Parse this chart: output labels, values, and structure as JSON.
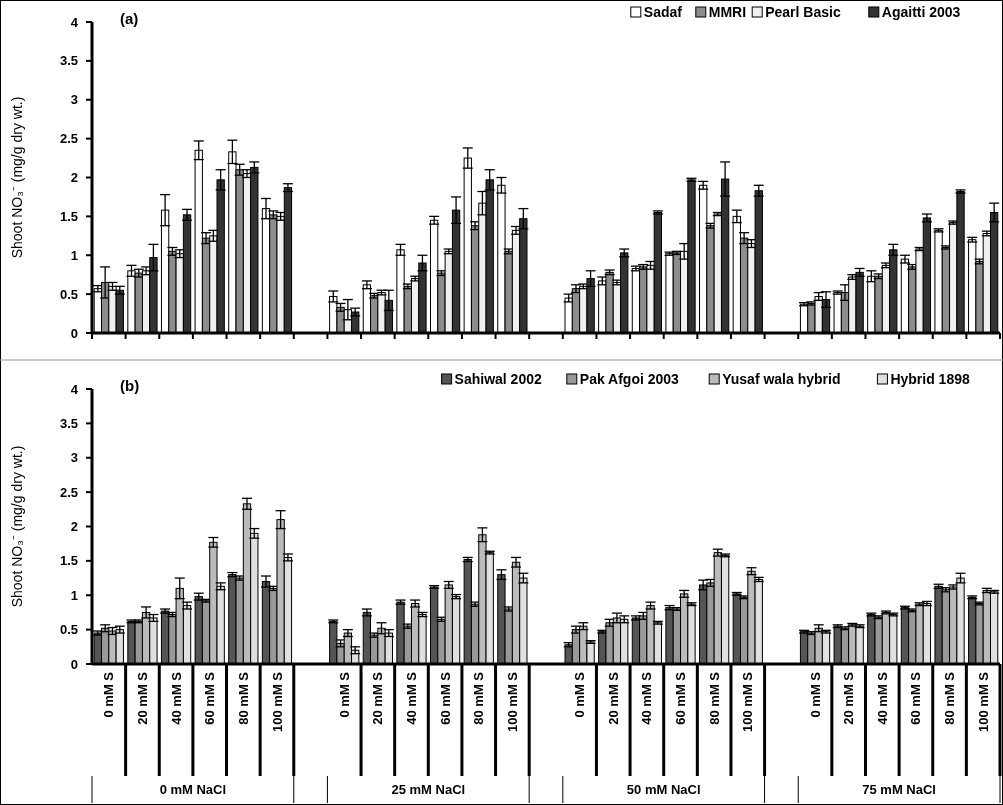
{
  "chart_data": [
    {
      "type": "bar",
      "title": "(a)",
      "ylabel": "Shoot NO₃⁻ (mg/g dry wt.)",
      "categories": [
        null,
        null,
        null,
        null,
        null,
        null,
        null,
        null,
        null,
        null,
        null,
        null,
        null,
        null,
        null,
        null,
        null,
        null,
        null,
        null,
        null,
        null,
        null,
        null,
        null,
        null,
        null
      ],
      "ylim": [
        0,
        4
      ],
      "yticks": [
        0,
        0.5,
        1,
        1.5,
        2,
        2.5,
        3,
        3.5,
        4
      ],
      "legend": "top right",
      "tick_labels": "y",
      "series": [
        {
          "name": "Sadaf",
          "color": "#ffffff",
          "values": [
            0.57,
            0.8,
            1.58,
            2.35,
            2.33,
            1.6,
            null,
            0.47,
            0.62,
            1.07,
            1.45,
            2.25,
            1.9,
            null,
            0.45,
            0.67,
            0.83,
            1.02,
            1.9,
            1.5,
            null,
            0.37,
            0.52,
            0.73,
            0.95,
            1.32,
            1.2
          ],
          "errors": [
            0.04,
            0.07,
            0.2,
            0.12,
            0.15,
            0.13,
            null,
            0.07,
            0.05,
            0.07,
            0.05,
            0.13,
            0.1,
            null,
            0.05,
            0.05,
            0.03,
            0.02,
            0.05,
            0.08,
            null,
            0.02,
            0.02,
            0.07,
            0.05,
            0.02,
            0.03
          ]
        },
        {
          "name": "MMRI",
          "color": "#8c8c8c",
          "values": [
            0.65,
            0.77,
            1.05,
            1.22,
            2.1,
            1.52,
            null,
            0.33,
            0.48,
            0.6,
            0.77,
            1.38,
            1.05,
            null,
            0.57,
            0.78,
            0.85,
            1.03,
            1.38,
            1.22,
            null,
            0.38,
            0.52,
            0.73,
            0.85,
            1.1,
            0.92
          ],
          "errors": [
            0.2,
            0.05,
            0.05,
            0.07,
            0.07,
            0.05,
            null,
            0.05,
            0.03,
            0.03,
            0.03,
            0.05,
            0.03,
            null,
            0.05,
            0.03,
            0.03,
            0.02,
            0.03,
            0.07,
            null,
            0.02,
            0.1,
            0.03,
            0.03,
            0.02,
            0.03
          ]
        },
        {
          "name": "Pearl Basic",
          "color": "#f0f0f0",
          "values": [
            0.6,
            0.8,
            1.02,
            1.25,
            2.05,
            1.5,
            null,
            0.3,
            0.52,
            0.7,
            1.05,
            1.67,
            1.32,
            null,
            0.6,
            0.65,
            0.87,
            1.05,
            1.53,
            1.15,
            null,
            0.47,
            0.72,
            0.87,
            1.08,
            1.42,
            1.28
          ],
          "errors": [
            0.05,
            0.05,
            0.05,
            0.07,
            0.05,
            0.05,
            null,
            0.13,
            0.03,
            0.03,
            0.03,
            0.15,
            0.05,
            null,
            0.03,
            0.03,
            0.05,
            0.1,
            0.02,
            0.05,
            null,
            0.05,
            0.03,
            0.03,
            0.02,
            0.02,
            0.03
          ]
        },
        {
          "name": "Agaitti 2003",
          "color": "#333333",
          "values": [
            0.55,
            0.97,
            1.52,
            1.97,
            2.13,
            1.87,
            null,
            0.27,
            0.42,
            0.9,
            1.58,
            1.97,
            1.47,
            null,
            0.7,
            1.03,
            1.55,
            1.97,
            1.98,
            1.83,
            null,
            0.43,
            0.78,
            1.07,
            1.48,
            1.82,
            1.55
          ],
          "errors": [
            0.05,
            0.17,
            0.07,
            0.13,
            0.07,
            0.05,
            null,
            0.05,
            0.13,
            0.1,
            0.17,
            0.13,
            0.13,
            null,
            0.1,
            0.05,
            0.02,
            0.02,
            0.22,
            0.07,
            null,
            0.1,
            0.05,
            0.07,
            0.05,
            0.02,
            0.12
          ]
        }
      ]
    },
    {
      "type": "bar",
      "title": "(b)",
      "ylabel": "Shoot NO₃⁻ (mg/g dry wt.)",
      "categories": [
        "0 mM S",
        "20 mM S",
        "40 mM S",
        "60 mM S",
        "80 mM S",
        "100 mM S",
        null,
        "0 mM S",
        "20 mM S",
        "40 mM S",
        "60 mM S",
        "80 mM S",
        "100 mM S",
        null,
        "0 mM S",
        "20 mM S",
        "40 mM S",
        "60 mM S",
        "80 mM S",
        "100 mM S",
        null,
        "0 mM S",
        "20 mM S",
        "40 mM S",
        "60 mM S",
        "80 mM S",
        "100 mM S"
      ],
      "ylim": [
        0,
        4
      ],
      "yticks": [
        0,
        0.5,
        1,
        1.5,
        2,
        2.5,
        3,
        3.5,
        4
      ],
      "legend": "top right",
      "annotations": [
        "0 mM NaCl",
        "25 mM NaCl",
        "50 mM NaCl",
        "75 mM NaCl"
      ],
      "series": [
        {
          "name": "Sahiwal 2002",
          "color": "#555555",
          "values": [
            0.45,
            0.62,
            0.77,
            0.98,
            1.3,
            1.2,
            null,
            0.62,
            0.75,
            0.9,
            1.12,
            1.52,
            1.3,
            null,
            0.28,
            0.47,
            0.67,
            0.82,
            1.15,
            1.02,
            null,
            0.47,
            0.55,
            0.72,
            0.82,
            1.13,
            0.97
          ],
          "errors": [
            0.03,
            0.02,
            0.03,
            0.05,
            0.03,
            0.08,
            null,
            0.02,
            0.05,
            0.03,
            0.02,
            0.03,
            0.07,
            null,
            0.03,
            0.02,
            0.03,
            0.03,
            0.07,
            0.02,
            null,
            0.02,
            0.02,
            0.02,
            0.02,
            0.03,
            0.02
          ]
        },
        {
          "name": "Pak Afgoi 2003",
          "color": "#999999",
          "values": [
            0.52,
            0.62,
            0.72,
            0.92,
            1.25,
            1.1,
            null,
            0.3,
            0.42,
            0.55,
            0.65,
            0.87,
            0.8,
            null,
            0.5,
            0.6,
            0.7,
            0.8,
            1.18,
            0.97,
            null,
            0.45,
            0.52,
            0.68,
            0.78,
            1.08,
            0.88
          ],
          "errors": [
            0.05,
            0.02,
            0.03,
            0.02,
            0.03,
            0.03,
            null,
            0.05,
            0.03,
            0.03,
            0.03,
            0.03,
            0.03,
            null,
            0.05,
            0.05,
            0.05,
            0.02,
            0.05,
            0.02,
            null,
            0.02,
            0.02,
            0.02,
            0.02,
            0.03,
            0.02
          ]
        },
        {
          "name": "Yusaf wala hybrid",
          "color": "#bbbbbb",
          "values": [
            0.48,
            0.75,
            1.1,
            1.77,
            2.33,
            2.1,
            null,
            0.45,
            0.52,
            0.88,
            1.15,
            1.88,
            1.48,
            null,
            0.55,
            0.67,
            0.85,
            1.02,
            1.62,
            1.35,
            null,
            0.52,
            0.57,
            0.75,
            0.87,
            1.12,
            1.07
          ],
          "errors": [
            0.05,
            0.08,
            0.15,
            0.07,
            0.08,
            0.13,
            null,
            0.05,
            0.08,
            0.05,
            0.05,
            0.1,
            0.07,
            null,
            0.05,
            0.07,
            0.05,
            0.05,
            0.05,
            0.05,
            null,
            0.05,
            0.02,
            0.02,
            0.02,
            0.03,
            0.03
          ]
        },
        {
          "name": "Hybrid 1898",
          "color": "#e0e0e0",
          "values": [
            0.5,
            0.67,
            0.85,
            1.13,
            1.9,
            1.55,
            null,
            0.2,
            0.45,
            0.72,
            0.98,
            1.62,
            1.25,
            null,
            0.32,
            0.65,
            0.6,
            0.87,
            1.58,
            1.23,
            null,
            0.47,
            0.55,
            0.72,
            0.88,
            1.25,
            1.05
          ],
          "errors": [
            0.05,
            0.05,
            0.05,
            0.05,
            0.07,
            0.05,
            null,
            0.05,
            0.05,
            0.03,
            0.03,
            0.02,
            0.07,
            null,
            0.02,
            0.05,
            0.02,
            0.02,
            0.02,
            0.03,
            null,
            0.02,
            0.02,
            0.02,
            0.03,
            0.07,
            0.02
          ]
        }
      ]
    }
  ]
}
